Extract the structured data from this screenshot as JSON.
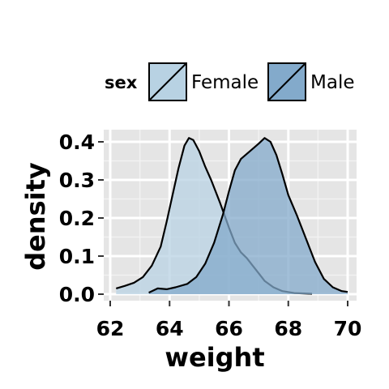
{
  "chart_data": {
    "type": "area",
    "xlabel": "weight",
    "ylabel": "density",
    "xlim": [
      62,
      70
    ],
    "ylim": [
      0,
      0.43
    ],
    "x_ticks": [
      62,
      64,
      66,
      68,
      70
    ],
    "x_tick_labels": [
      "62",
      "64",
      "66",
      "68",
      "70"
    ],
    "y_ticks": [
      0,
      0.1,
      0.2,
      0.3,
      0.4
    ],
    "y_tick_labels": [
      "0.0",
      "0.1",
      "0.2",
      "0.3",
      "0.4"
    ],
    "grid": true,
    "legend": {
      "title": "sex",
      "position": "top",
      "entries": [
        "Female",
        "Male"
      ]
    },
    "series": [
      {
        "name": "Female",
        "color": "#b8d2e3",
        "points": [
          [
            62.2,
            0.015
          ],
          [
            62.5,
            0.022
          ],
          [
            62.8,
            0.03
          ],
          [
            63.1,
            0.045
          ],
          [
            63.4,
            0.075
          ],
          [
            63.7,
            0.125
          ],
          [
            63.9,
            0.19
          ],
          [
            64.1,
            0.26
          ],
          [
            64.3,
            0.33
          ],
          [
            64.5,
            0.39
          ],
          [
            64.65,
            0.41
          ],
          [
            64.8,
            0.405
          ],
          [
            65.0,
            0.375
          ],
          [
            65.2,
            0.335
          ],
          [
            65.4,
            0.3
          ],
          [
            65.7,
            0.24
          ],
          [
            66.0,
            0.175
          ],
          [
            66.2,
            0.135
          ],
          [
            66.4,
            0.11
          ],
          [
            66.6,
            0.095
          ],
          [
            66.8,
            0.075
          ],
          [
            67.0,
            0.055
          ],
          [
            67.2,
            0.035
          ],
          [
            67.5,
            0.018
          ],
          [
            67.8,
            0.008
          ],
          [
            68.2,
            0.003
          ],
          [
            68.8,
            0.001
          ]
        ]
      },
      {
        "name": "Male",
        "color": "#83aacb",
        "points": [
          [
            63.3,
            0.004
          ],
          [
            63.6,
            0.015
          ],
          [
            63.9,
            0.013
          ],
          [
            64.2,
            0.018
          ],
          [
            64.6,
            0.027
          ],
          [
            64.9,
            0.045
          ],
          [
            65.2,
            0.08
          ],
          [
            65.5,
            0.135
          ],
          [
            65.8,
            0.21
          ],
          [
            66.0,
            0.27
          ],
          [
            66.2,
            0.325
          ],
          [
            66.4,
            0.355
          ],
          [
            66.7,
            0.375
          ],
          [
            67.0,
            0.395
          ],
          [
            67.2,
            0.41
          ],
          [
            67.4,
            0.4
          ],
          [
            67.6,
            0.365
          ],
          [
            67.8,
            0.315
          ],
          [
            68.0,
            0.26
          ],
          [
            68.3,
            0.205
          ],
          [
            68.6,
            0.145
          ],
          [
            68.9,
            0.085
          ],
          [
            69.2,
            0.04
          ],
          [
            69.5,
            0.018
          ],
          [
            69.8,
            0.008
          ],
          [
            70.0,
            0.006
          ]
        ]
      }
    ]
  }
}
